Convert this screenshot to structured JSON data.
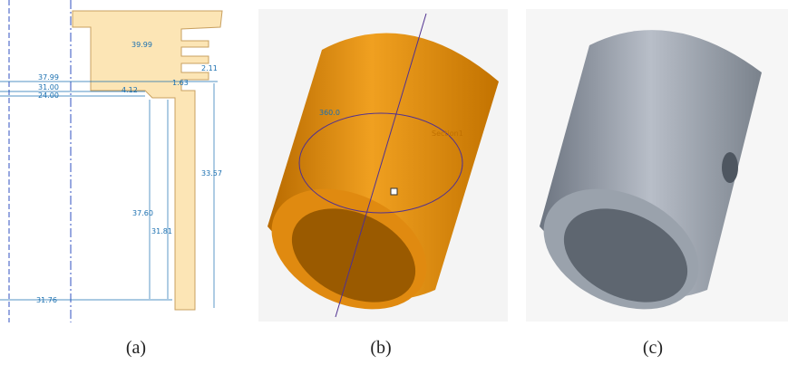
{
  "figure": {
    "panels": [
      {
        "label": "(a)",
        "dimensions": [
          "39.99",
          "2.11",
          "37.99",
          "31.00",
          "24.00",
          "4.12",
          "1.63",
          "33.57",
          "37.60",
          "31.81",
          "31.76"
        ]
      },
      {
        "label": "(b)",
        "annotations": [
          "360.0",
          "Section1"
        ]
      },
      {
        "label": "(c)"
      }
    ]
  }
}
